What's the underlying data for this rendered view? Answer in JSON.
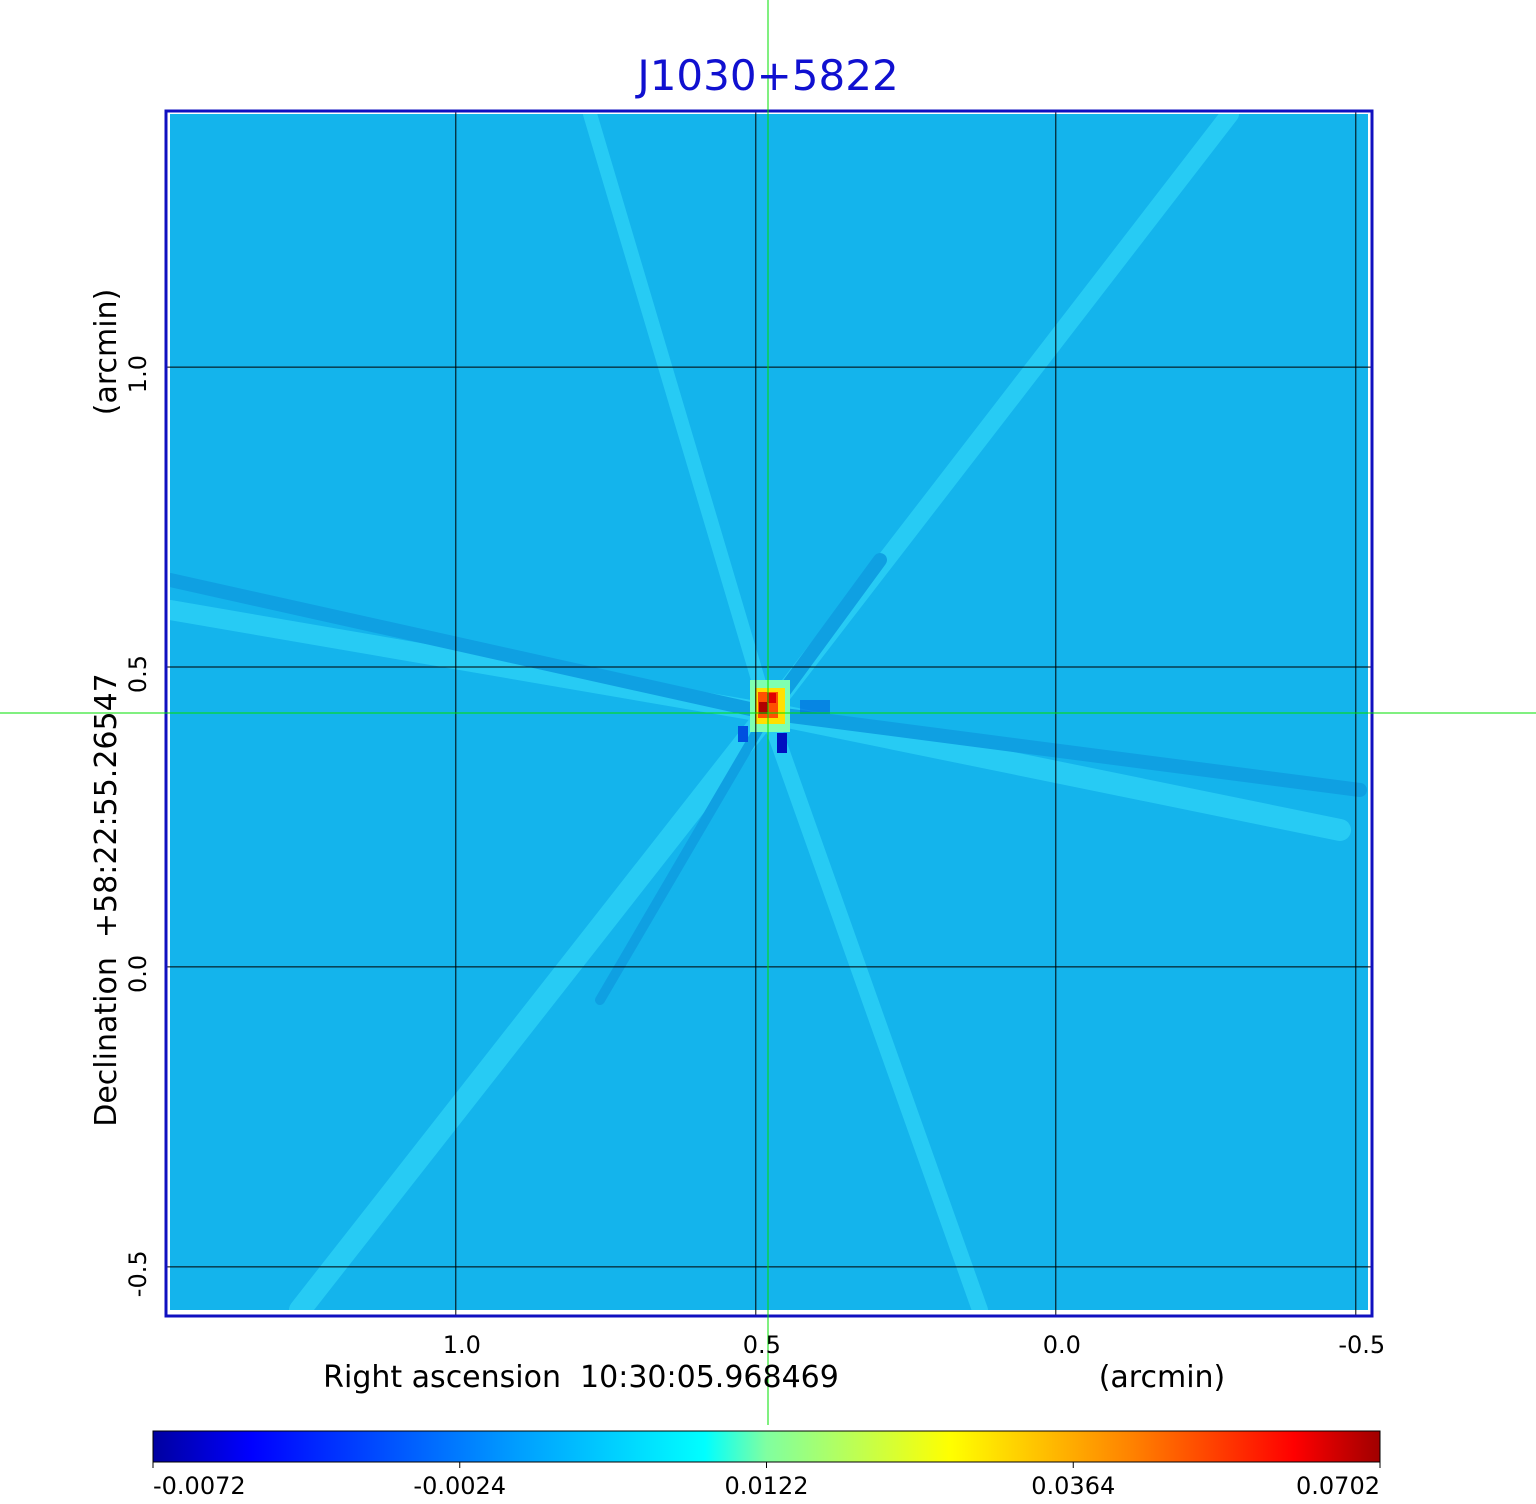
{
  "chart_data": {
    "type": "image",
    "title": "J1030+5822",
    "x_label": "Right ascension  10:30:05.968469",
    "x_unit": "(arcmin)",
    "y_label": "Declination  +58:22:55.26547",
    "y_unit": "(arcmin)",
    "xlim": [
      1.483,
      -0.527
    ],
    "ylim": [
      -0.582,
      1.427
    ],
    "xticks": [
      {
        "value": 1,
        "label": "1.0"
      },
      0.5,
      {
        "value": 0,
        "label": "0.0"
      },
      -0.5
    ],
    "yticks": [
      {
        "value": 1,
        "label": "1.0"
      },
      0.5,
      {
        "value": 0,
        "label": "0.0"
      },
      -0.5
    ],
    "grid": true,
    "colorbar_ticks": [
      -0.0072,
      -0.0024,
      0.0122,
      0.0364,
      0.0702
    ]
  }
}
